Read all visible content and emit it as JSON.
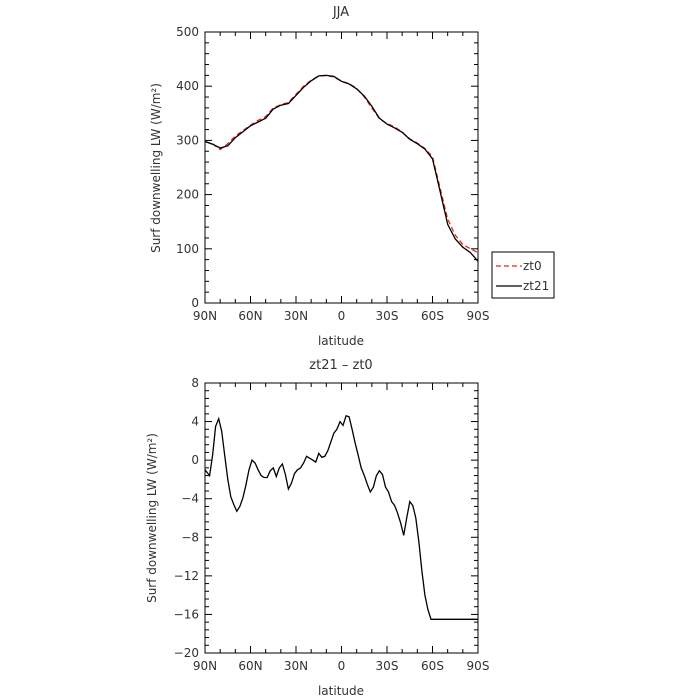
{
  "chart_data": [
    {
      "type": "line",
      "title": "JJA",
      "xlabel": "latitude",
      "ylabel": "Surf downwelling LW (W/m²)",
      "xlim": [
        -90,
        90
      ],
      "ylim": [
        0,
        500
      ],
      "xticks": [
        -90,
        -60,
        -30,
        0,
        30,
        60,
        90
      ],
      "xtick_labels": [
        "90N",
        "60N",
        "30N",
        "0",
        "30S",
        "60S",
        "90S"
      ],
      "yticks": [
        0,
        100,
        200,
        300,
        400,
        500
      ],
      "ytick_labels": [
        "0",
        "100",
        "200",
        "300",
        "400",
        "500"
      ],
      "legend": {
        "position": "outside-right"
      },
      "grid": false,
      "x": [
        -90,
        -85,
        -80,
        -75,
        -70,
        -65,
        -60,
        -55,
        -50,
        -45,
        -40,
        -35,
        -30,
        -25,
        -20,
        -15,
        -10,
        -5,
        0,
        5,
        10,
        15,
        20,
        25,
        30,
        35,
        40,
        45,
        50,
        55,
        60,
        65,
        70,
        75,
        80,
        85,
        90
      ],
      "series": [
        {
          "name": "zt0",
          "color": "#e8241e",
          "dash": "dashed",
          "values": [
            298,
            294,
            283,
            294,
            308,
            318,
            328,
            337,
            344,
            360,
            366,
            370,
            385,
            400,
            411,
            419,
            420,
            417,
            409,
            405,
            396,
            380,
            360,
            340,
            331,
            325,
            315,
            303,
            295,
            285,
            270,
            212,
            155,
            125,
            108,
            100,
            93
          ]
        },
        {
          "name": "zt21",
          "color": "#000000",
          "dash": "solid",
          "values": [
            298,
            293,
            286,
            290,
            305,
            316,
            327,
            334,
            341,
            358,
            365,
            368,
            383,
            398,
            410,
            419,
            420,
            418,
            409,
            404,
            395,
            382,
            363,
            341,
            330,
            323,
            315,
            302,
            294,
            284,
            266,
            206,
            145,
            118,
            103,
            93,
            77
          ]
        }
      ]
    },
    {
      "type": "line",
      "title": "zt21 – zt0",
      "xlabel": "latitude",
      "ylabel": "Surf downwelling LW (W/m²)",
      "xlim": [
        -90,
        90
      ],
      "ylim": [
        -20,
        8
      ],
      "xticks": [
        -90,
        -60,
        -30,
        0,
        30,
        60,
        90
      ],
      "xtick_labels": [
        "90N",
        "60N",
        "30N",
        "0",
        "30S",
        "60S",
        "90S"
      ],
      "yticks": [
        -20,
        -16,
        -12,
        -8,
        -4,
        0,
        4,
        8
      ],
      "ytick_labels": [
        "−20",
        "−16",
        "−12",
        "−8",
        "−4",
        "0",
        "4",
        "8"
      ],
      "grid": false,
      "series": [
        {
          "color": "#000000",
          "x": [
            -90,
            -87,
            -85,
            -83,
            -81,
            -79,
            -77,
            -75,
            -73,
            -71,
            -69,
            -67,
            -65,
            -63,
            -61,
            -59,
            -57,
            -55,
            -53,
            -51,
            -49,
            -47,
            -45,
            -43,
            -41,
            -39,
            -37,
            -35,
            -33,
            -31,
            -29,
            -27,
            -25,
            -23,
            -21,
            -19,
            -17,
            -15,
            -13,
            -11,
            -9,
            -7,
            -5,
            -3,
            -1,
            1,
            3,
            5,
            7,
            9,
            11,
            13,
            15,
            17,
            19,
            21,
            23,
            25,
            27,
            29,
            31,
            33,
            35,
            37,
            39,
            41,
            43,
            45,
            47,
            49,
            51,
            53,
            55,
            57,
            59,
            61,
            63,
            65,
            67,
            69,
            71,
            73,
            75,
            77,
            79,
            81,
            83,
            85,
            87,
            89,
            90
          ],
          "y": [
            -1,
            -1.6,
            0.5,
            3.5,
            4.3,
            3,
            0.5,
            -2,
            -3.8,
            -4.6,
            -5.3,
            -4.8,
            -3.9,
            -2.6,
            -1,
            0,
            -0.3,
            -1,
            -1.6,
            -1.8,
            -1.8,
            -1.1,
            -0.8,
            -1.7,
            -0.8,
            -0.4,
            -1.5,
            -3,
            -2.4,
            -1.4,
            -1,
            -0.8,
            -0.3,
            0.4,
            0.2,
            0,
            -0.2,
            0.7,
            0.3,
            0.4,
            1,
            1.9,
            2.8,
            3.2,
            4,
            3.6,
            4.6,
            4.5,
            3.2,
            1.8,
            0.5,
            -0.8,
            -1.6,
            -2.5,
            -3.3,
            -2.8,
            -1.6,
            -1.1,
            -1.5,
            -2.8,
            -3.3,
            -4.3,
            -4.7,
            -5.5,
            -6.5,
            -7.8,
            -6,
            -4.3,
            -4.7,
            -6,
            -8.5,
            -11.5,
            -14,
            -15.5,
            -16.5,
            -16.5,
            -16.5,
            -16.5,
            -16.5,
            -16.5,
            -16.5,
            -16.5,
            -16.5,
            -16.5,
            -16.5,
            -16.5,
            -16.5,
            -16.5,
            -16.5,
            -16.5,
            -16.5
          ]
        }
      ]
    }
  ]
}
